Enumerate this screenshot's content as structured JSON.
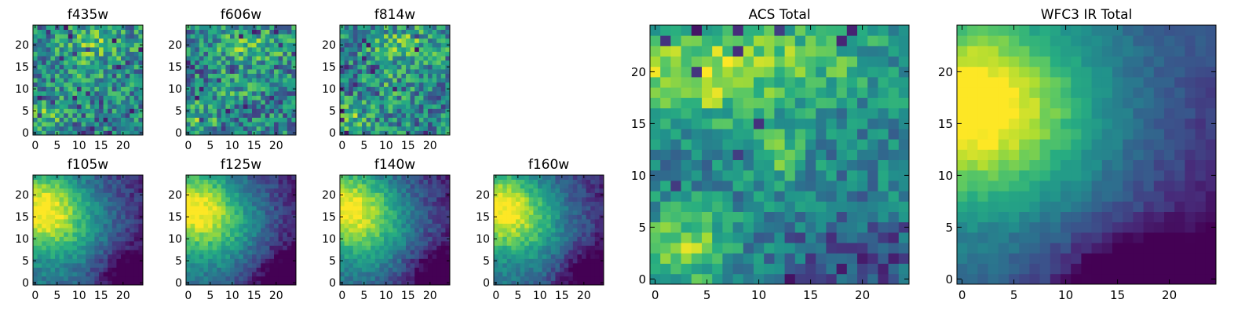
{
  "chart_data": [
    {
      "type": "heatmap",
      "title": "f435w",
      "xticks": [
        0,
        5,
        10,
        15,
        20
      ],
      "yticks": [
        0,
        5,
        10,
        15,
        20
      ],
      "xlim": [
        -0.5,
        24.5
      ],
      "ylim": [
        -0.5,
        24.5
      ],
      "pattern": "noisy-optical",
      "seed": 11
    },
    {
      "type": "heatmap",
      "title": "f606w",
      "xticks": [
        0,
        5,
        10,
        15,
        20
      ],
      "yticks": [
        0,
        5,
        10,
        15,
        20
      ],
      "xlim": [
        -0.5,
        24.5
      ],
      "ylim": [
        -0.5,
        24.5
      ],
      "pattern": "noisy-optical",
      "seed": 23
    },
    {
      "type": "heatmap",
      "title": "f814w",
      "xticks": [
        0,
        5,
        10,
        15,
        20
      ],
      "yticks": [
        0,
        5,
        10,
        15,
        20
      ],
      "xlim": [
        -0.5,
        24.5
      ],
      "ylim": [
        -0.5,
        24.5
      ],
      "pattern": "noisy-optical",
      "seed": 37
    },
    {
      "type": "heatmap",
      "title": "f105w",
      "xticks": [
        0,
        5,
        10,
        15,
        20
      ],
      "yticks": [
        0,
        5,
        10,
        15,
        20
      ],
      "xlim": [
        -0.5,
        24.5
      ],
      "ylim": [
        -0.5,
        24.5
      ],
      "pattern": "smooth-ir",
      "seed": 41
    },
    {
      "type": "heatmap",
      "title": "f125w",
      "xticks": [
        0,
        5,
        10,
        15,
        20
      ],
      "yticks": [
        0,
        5,
        10,
        15,
        20
      ],
      "xlim": [
        -0.5,
        24.5
      ],
      "ylim": [
        -0.5,
        24.5
      ],
      "pattern": "smooth-ir",
      "seed": 53
    },
    {
      "type": "heatmap",
      "title": "f140w",
      "xticks": [
        0,
        5,
        10,
        15,
        20
      ],
      "yticks": [
        0,
        5,
        10,
        15,
        20
      ],
      "xlim": [
        -0.5,
        24.5
      ],
      "ylim": [
        -0.5,
        24.5
      ],
      "pattern": "smooth-ir",
      "seed": 67
    },
    {
      "type": "heatmap",
      "title": "f160w",
      "xticks": [
        0,
        5,
        10,
        15,
        20
      ],
      "yticks": [
        0,
        5,
        10,
        15,
        20
      ],
      "xlim": [
        -0.5,
        24.5
      ],
      "ylim": [
        -0.5,
        24.5
      ],
      "pattern": "smooth-ir",
      "seed": 79
    },
    {
      "type": "heatmap",
      "title": "ACS Total",
      "xticks": [
        0,
        5,
        10,
        15,
        20
      ],
      "yticks": [
        0,
        5,
        10,
        15,
        20
      ],
      "xlim": [
        -0.5,
        24.5
      ],
      "ylim": [
        -0.5,
        24.5
      ],
      "pattern": "acs-total",
      "seed": 97
    },
    {
      "type": "heatmap",
      "title": "WFC3 IR Total",
      "xticks": [
        0,
        5,
        10,
        15,
        20
      ],
      "yticks": [
        0,
        5,
        10,
        15,
        20
      ],
      "xlim": [
        -0.5,
        24.5
      ],
      "ylim": [
        -0.5,
        24.5
      ],
      "pattern": "ir-total",
      "seed": 113
    }
  ]
}
